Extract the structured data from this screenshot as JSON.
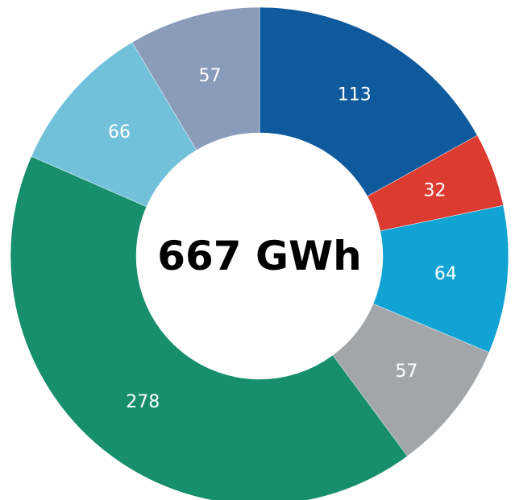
{
  "chart_data": {
    "type": "pie",
    "donut": true,
    "center_text": "667 GWh",
    "slices": [
      {
        "value": 113,
        "label": "113",
        "color": "#0e5a9c"
      },
      {
        "value": 32,
        "label": "32",
        "color": "#db3b30"
      },
      {
        "value": 64,
        "label": "64",
        "color": "#11a3d3"
      },
      {
        "value": 57,
        "label": "57",
        "color": "#a2a6a8"
      },
      {
        "value": 278,
        "label": "278",
        "color": "#178e6c"
      },
      {
        "value": 66,
        "label": "66",
        "color": "#72c1db"
      },
      {
        "value": 57,
        "label": "57",
        "color": "#8b9bba"
      }
    ],
    "legend": "none"
  }
}
